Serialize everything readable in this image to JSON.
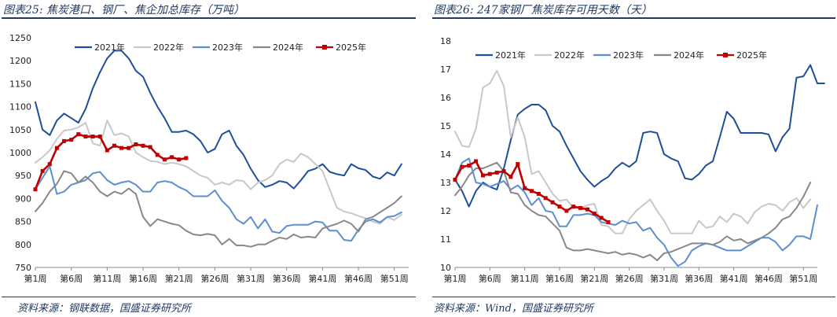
{
  "panels": [
    {
      "title": "图表25: 焦炭港口、钢厂、焦企加总库存（万吨）",
      "source": "资料来源：钢联数据，国盛证券研究所"
    },
    {
      "title": "图表26: 247家钢厂焦炭库存可用天数（天）",
      "source": "资料来源：Wind，国盛证券研究所"
    }
  ],
  "chart_data": [
    {
      "type": "line",
      "title": "图表25: 焦炭港口、钢厂、焦企加总库存（万吨）",
      "ylim": [
        750,
        1250
      ],
      "yticks": [
        750,
        800,
        850,
        900,
        950,
        1000,
        1050,
        1100,
        1150,
        1200,
        1250
      ],
      "xlim": [
        1,
        53
      ],
      "xticks": [
        1,
        6,
        11,
        16,
        21,
        26,
        31,
        36,
        41,
        46,
        51
      ],
      "xticklabels": [
        "第1周",
        "第6周",
        "第11周",
        "第16周",
        "第21周",
        "第26周",
        "第31周",
        "第36周",
        "第41周",
        "第46周",
        "第51周"
      ],
      "grid": false,
      "legend_position": "top",
      "series": [
        {
          "name": "2021年",
          "color": "#1f4e9a",
          "marker": false,
          "values": [
            1110,
            1050,
            1038,
            1070,
            1085,
            1075,
            1065,
            1095,
            1140,
            1175,
            1205,
            1222,
            1222,
            1205,
            1178,
            1165,
            1130,
            1100,
            1075,
            1045,
            1045,
            1048,
            1040,
            1025,
            1000,
            1008,
            1040,
            1048,
            1015,
            995,
            965,
            940,
            925,
            930,
            938,
            935,
            922,
            940,
            960,
            965,
            975,
            958,
            953,
            950,
            975,
            966,
            962,
            948,
            943,
            957,
            950,
            975
          ]
        },
        {
          "name": "2022年",
          "color": "#c8c8c8",
          "marker": false,
          "values": [
            978,
            990,
            1005,
            1030,
            1048,
            1050,
            1055,
            1065,
            1020,
            1015,
            1070,
            1038,
            1042,
            1035,
            1000,
            990,
            982,
            980,
            975,
            978,
            975,
            970,
            960,
            950,
            945,
            930,
            935,
            930,
            940,
            938,
            920,
            935,
            940,
            950,
            975,
            985,
            980,
            998,
            990,
            975,
            960,
            920,
            880,
            872,
            868,
            862,
            857,
            850,
            845,
            860,
            853,
            865
          ]
        },
        {
          "name": "2023年",
          "color": "#5b8fcf",
          "marker": false,
          "values": [
            920,
            945,
            970,
            910,
            915,
            930,
            935,
            940,
            955,
            958,
            940,
            930,
            935,
            938,
            930,
            915,
            915,
            935,
            938,
            935,
            925,
            918,
            905,
            905,
            905,
            918,
            895,
            880,
            855,
            845,
            860,
            835,
            855,
            828,
            825,
            840,
            843,
            843,
            843,
            850,
            848,
            830,
            830,
            810,
            808,
            832,
            850,
            855,
            848,
            860,
            862,
            870
          ]
        },
        {
          "name": "2024年",
          "color": "#888888",
          "marker": false,
          "values": [
            872,
            890,
            915,
            932,
            960,
            955,
            935,
            948,
            935,
            915,
            905,
            915,
            910,
            922,
            910,
            860,
            840,
            855,
            850,
            845,
            842,
            830,
            822,
            820,
            823,
            820,
            800,
            812,
            798,
            798,
            795,
            800,
            800,
            808,
            815,
            812,
            822,
            815,
            817,
            815,
            835,
            840,
            845,
            852,
            845,
            828,
            855,
            860,
            870,
            880,
            890,
            905
          ]
        },
        {
          "name": "2025年",
          "color": "#c00000",
          "marker": true,
          "values": [
            920,
            960,
            975,
            1010,
            1025,
            1028,
            1040,
            1035,
            1035,
            1035,
            1005,
            1015,
            1010,
            1010,
            1018,
            1015,
            1012,
            995,
            985,
            990,
            985,
            988
          ]
        }
      ]
    },
    {
      "type": "line",
      "title": "图表26: 247家钢厂焦炭库存可用天数（天）",
      "ylim": [
        10,
        18
      ],
      "yticks": [
        10,
        11,
        12,
        13,
        14,
        15,
        16,
        17,
        18
      ],
      "xlim": [
        1,
        53
      ],
      "xticks": [
        1,
        6,
        11,
        16,
        21,
        26,
        31,
        36,
        41,
        46,
        51
      ],
      "xticklabels": [
        "第1周",
        "第6周",
        "第11周",
        "第16周",
        "第21周",
        "第26周",
        "第31周",
        "第36周",
        "第41周",
        "第46周",
        "第51周"
      ],
      "grid": false,
      "legend_position": "top",
      "series": [
        {
          "name": "2021年",
          "color": "#1f4e9a",
          "marker": false,
          "values": [
            13.1,
            12.7,
            12.15,
            12.7,
            13.0,
            12.85,
            12.75,
            13.5,
            14.5,
            15.4,
            15.6,
            15.75,
            15.75,
            15.55,
            15.0,
            14.8,
            14.3,
            13.85,
            13.4,
            13.1,
            12.85,
            13.05,
            13.2,
            13.5,
            13.7,
            13.55,
            13.75,
            14.75,
            14.8,
            14.75,
            14.0,
            13.85,
            13.75,
            13.15,
            13.1,
            13.3,
            13.6,
            13.75,
            14.6,
            15.5,
            15.25,
            14.75,
            14.75,
            14.75,
            14.75,
            14.7,
            14.1,
            14.6,
            14.9,
            16.7,
            16.75,
            17.15,
            16.5,
            16.5
          ]
        },
        {
          "name": "2022年",
          "color": "#c8c8c8",
          "marker": false,
          "values": [
            14.8,
            14.3,
            14.25,
            14.9,
            16.35,
            16.5,
            16.95,
            16.4,
            14.6,
            15.3,
            14.6,
            13.3,
            13.4,
            13.0,
            12.6,
            12.35,
            12.4,
            12.1,
            12.1,
            12.2,
            12.25,
            11.5,
            11.45,
            11.2,
            11.2,
            11.7,
            12.0,
            12.2,
            12.4,
            12.0,
            11.65,
            11.2,
            11.2,
            11.2,
            11.2,
            11.65,
            11.4,
            11.45,
            11.8,
            11.6,
            11.9,
            11.8,
            11.55,
            11.95,
            12.15,
            12.25,
            12.2,
            12.0,
            12.3,
            12.45,
            12.1,
            12.4
          ]
        },
        {
          "name": "2023年",
          "color": "#5b8fcf",
          "marker": false,
          "values": [
            13.1,
            13.7,
            13.85,
            13.0,
            12.95,
            12.85,
            12.95,
            13.05,
            12.75,
            12.9,
            12.65,
            12.2,
            12.45,
            12.0,
            11.95,
            11.45,
            11.45,
            11.85,
            11.85,
            11.9,
            11.85,
            11.6,
            11.55,
            11.5,
            11.65,
            11.55,
            11.6,
            11.3,
            11.4,
            11.05,
            10.8,
            10.35,
            10.05,
            10.2,
            10.6,
            10.75,
            10.85,
            10.8,
            10.7,
            10.6,
            10.6,
            10.6,
            10.75,
            10.9,
            11.05,
            11.05,
            10.9,
            10.6,
            10.8,
            11.1,
            11.1,
            11.0,
            12.2
          ]
        },
        {
          "name": "2024年",
          "color": "#888888",
          "marker": false,
          "values": [
            12.55,
            12.85,
            13.25,
            13.5,
            13.5,
            13.6,
            13.7,
            13.4,
            12.65,
            12.6,
            12.2,
            12.0,
            11.85,
            11.8,
            11.55,
            11.3,
            10.7,
            10.6,
            10.6,
            10.65,
            10.6,
            10.55,
            10.5,
            10.55,
            10.45,
            10.5,
            10.45,
            10.35,
            10.45,
            10.25,
            10.5,
            10.55,
            10.65,
            10.75,
            10.85,
            10.85,
            10.85,
            10.8,
            10.9,
            11.1,
            10.95,
            11.0,
            10.85,
            10.95,
            11.05,
            11.2,
            11.4,
            11.7,
            11.8,
            12.1,
            12.5,
            13.0
          ]
        },
        {
          "name": "2025年",
          "color": "#c00000",
          "marker": true,
          "values": [
            13.1,
            13.55,
            13.6,
            13.75,
            13.25,
            13.3,
            13.35,
            13.4,
            13.2,
            13.65,
            12.8,
            12.7,
            12.6,
            12.45,
            12.3,
            12.15,
            12.0,
            12.15,
            12.1,
            12.05,
            11.9,
            11.75,
            11.6
          ]
        }
      ]
    }
  ]
}
